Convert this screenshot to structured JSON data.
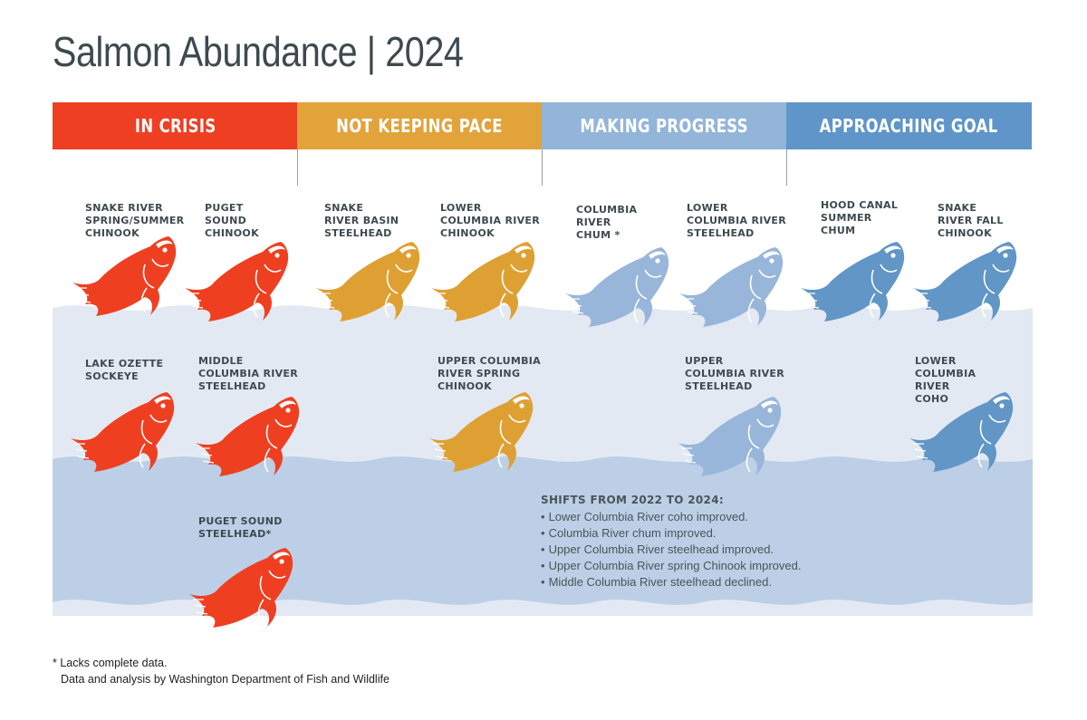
{
  "title": "Salmon Abundance | 2024",
  "colors": {
    "in_crisis": "#ee3f23",
    "not_keeping_pace": "#e2a33b",
    "making_progress": "#93b5d9",
    "approaching_goal": "#5f95c8",
    "water_light": "#e3e9f3",
    "water_dark": "#bccfe6",
    "fish_crisis": "#ef3f21",
    "fish_pace": "#dfa033",
    "fish_progress": "#98b6d9",
    "fish_goal": "#6196c6"
  },
  "categories": [
    {
      "label": "IN CRISIS",
      "color": "#ee3f23"
    },
    {
      "label": "NOT KEEPING PACE",
      "color": "#e2a33b"
    },
    {
      "label": "MAKING PROGRESS",
      "color": "#93b5d9"
    },
    {
      "label": "APPROACHING GOAL",
      "color": "#5f95c8"
    }
  ],
  "populations": [
    {
      "status": "in_crisis",
      "lines": [
        "SNAKE RIVER",
        "SPRING/SUMMER",
        "CHINOOK"
      ]
    },
    {
      "status": "in_crisis",
      "lines": [
        "PUGET",
        "SOUND",
        "CHINOOK"
      ]
    },
    {
      "status": "not_keeping_pace",
      "lines": [
        "SNAKE",
        "RIVER BASIN",
        "STEELHEAD"
      ]
    },
    {
      "status": "not_keeping_pace",
      "lines": [
        "LOWER",
        "COLUMBIA RIVER",
        "CHINOOK"
      ]
    },
    {
      "status": "making_progress",
      "lines": [
        "COLUMBIA",
        "RIVER",
        "CHUM *"
      ]
    },
    {
      "status": "making_progress",
      "lines": [
        "LOWER",
        "COLUMBIA RIVER",
        "STEELHEAD"
      ]
    },
    {
      "status": "approaching_goal",
      "lines": [
        "HOOD CANAL",
        "SUMMER",
        "CHUM"
      ]
    },
    {
      "status": "approaching_goal",
      "lines": [
        "SNAKE",
        "RIVER FALL",
        "CHINOOK"
      ]
    },
    {
      "status": "in_crisis",
      "lines": [
        "LAKE OZETTE",
        "SOCKEYE"
      ]
    },
    {
      "status": "in_crisis",
      "lines": [
        "MIDDLE",
        "COLUMBIA RIVER",
        "STEELHEAD"
      ]
    },
    {
      "status": "not_keeping_pace",
      "lines": [
        "UPPER COLUMBIA",
        "RIVER SPRING",
        "CHINOOK"
      ]
    },
    {
      "status": "making_progress",
      "lines": [
        "UPPER",
        "COLUMBIA RIVER",
        "STEELHEAD"
      ]
    },
    {
      "status": "approaching_goal",
      "lines": [
        "LOWER",
        "COLUMBIA",
        "RIVER",
        "COHO"
      ]
    },
    {
      "status": "in_crisis",
      "lines": [
        "PUGET SOUND",
        "STEELHEAD*"
      ]
    }
  ],
  "shifts": {
    "title": "SHIFTS FROM 2022 TO 2024:",
    "items": [
      "Lower Columbia River coho improved.",
      "Columbia River chum improved.",
      "Upper Columbia River steelhead improved.",
      "Upper Columbia River spring Chinook improved.",
      "Middle Columbia River steelhead declined."
    ]
  },
  "footnote": "* Lacks complete data.",
  "source": "Data and analysis by Washington Department of Fish and Wildlife"
}
